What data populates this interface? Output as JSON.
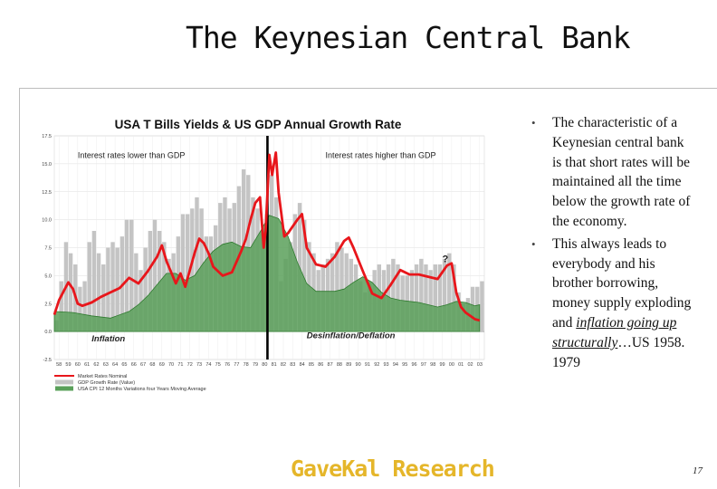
{
  "slide": {
    "title": "The Keynesian Central Bank",
    "bullets": [
      {
        "text": "The characteristic of a Keynesian central bank is that short rates will be maintained all the time below the growth rate of the economy."
      },
      {
        "text_before": "This always leads to everybody and his brother borrowing, money supply exploding and ",
        "text_emph": "inflation going up structurally",
        "text_after": "…US 1958. 1979"
      }
    ],
    "brand": "GaveKal Research",
    "page_number": "17",
    "colors": {
      "brand": "#e5b62a",
      "market_rate": "#e8161b",
      "gdp_bars": "#c4c4c4",
      "cpi_area": "#5aa05a",
      "cpi_edge": "#2e7a2e"
    }
  },
  "chart_data": {
    "type": "area",
    "title": "USA T Bills Yields & US GDP Annual Growth Rate",
    "y_tick_labels": [
      "17.5",
      "15.0",
      "12.5",
      "10.0",
      "7.5",
      "5.0",
      "2.5",
      "0.0",
      "-2.5"
    ],
    "ylim": [
      -2.5,
      17.5
    ],
    "x_tick_labels": [
      "58",
      "59",
      "60",
      "61",
      "62",
      "63",
      "64",
      "65",
      "66",
      "67",
      "68",
      "69",
      "70",
      "71",
      "72",
      "73",
      "74",
      "75",
      "76",
      "77",
      "78",
      "79",
      "80",
      "81",
      "82",
      "83",
      "84",
      "85",
      "86",
      "87",
      "88",
      "89",
      "90",
      "91",
      "92",
      "93",
      "94",
      "95",
      "96",
      "97",
      "98",
      "99",
      "00",
      "01",
      "02",
      "03"
    ],
    "xlim": [
      1958,
      2004
    ],
    "grid": true,
    "vertical_line_x": 1980.8,
    "annotations": [
      {
        "text": "Interest rates lower than GDP",
        "x": 1960.5,
        "y": 15.5
      },
      {
        "text": "Interest rates higher than GDP",
        "x": 1987,
        "y": 15.5
      },
      {
        "text": "?",
        "x": 1999.5,
        "y": 6.2
      },
      {
        "text": "Inflation",
        "x": 1962,
        "y": -0.9
      },
      {
        "text": "Desinflation/Deflation",
        "x": 1985,
        "y": -0.6
      }
    ],
    "legend": [
      "Market Rates Nominal",
      "GDP Growth Rate (Value)",
      "USA CPI 12 Months Variations four Years Moving Average"
    ],
    "legend_position": "bottom-left",
    "series": [
      {
        "name": "Market Rates Nominal",
        "style": "line",
        "x": [
          1958,
          1958.5,
          1959,
          1959.5,
          1960,
          1960.5,
          1961,
          1962,
          1963,
          1964,
          1965,
          1966,
          1967,
          1968,
          1969,
          1969.5,
          1970,
          1971,
          1971.5,
          1972,
          1973,
          1973.5,
          1974,
          1974.5,
          1975,
          1976,
          1977,
          1978,
          1978.5,
          1979,
          1979.5,
          1980,
          1980.4,
          1980.6,
          1981,
          1981.3,
          1981.7,
          1982,
          1982.6,
          1983,
          1984,
          1984.5,
          1985,
          1986,
          1987,
          1988,
          1989,
          1989.5,
          1990,
          1991,
          1992,
          1993,
          1994,
          1995,
          1996,
          1997,
          1998,
          1999,
          2000,
          2000.5,
          2001,
          2001.5,
          2002,
          2003,
          2003.5
        ],
        "y": [
          1.5,
          2.8,
          3.6,
          4.4,
          3.8,
          2.5,
          2.3,
          2.6,
          3.1,
          3.5,
          3.9,
          4.8,
          4.3,
          5.4,
          6.7,
          7.7,
          6.3,
          4.3,
          5.2,
          4.0,
          7.0,
          8.3,
          7.9,
          7.0,
          5.8,
          5.0,
          5.3,
          7.2,
          8.3,
          10.0,
          11.5,
          12.0,
          7.5,
          9.0,
          15.8,
          14.0,
          16.0,
          12.4,
          8.5,
          8.8,
          10.0,
          10.5,
          7.5,
          6.0,
          5.8,
          6.7,
          8.1,
          8.4,
          7.5,
          5.4,
          3.4,
          3.0,
          4.2,
          5.5,
          5.1,
          5.1,
          4.9,
          4.7,
          5.9,
          6.1,
          3.5,
          2.2,
          1.7,
          1.1,
          1.0
        ]
      },
      {
        "name": "GDP Growth Rate (Value)",
        "style": "bars",
        "x": [
          1958,
          1958.5,
          1959,
          1959.5,
          1960,
          1960.5,
          1961,
          1961.5,
          1962,
          1962.5,
          1963,
          1963.5,
          1964,
          1964.5,
          1965,
          1965.5,
          1966,
          1966.5,
          1967,
          1967.5,
          1968,
          1968.5,
          1969,
          1969.5,
          1970,
          1970.5,
          1971,
          1971.5,
          1972,
          1972.5,
          1973,
          1973.5,
          1974,
          1974.5,
          1975,
          1975.5,
          1976,
          1976.5,
          1977,
          1977.5,
          1978,
          1978.5,
          1979,
          1979.5,
          1980,
          1980.5,
          1981,
          1981.5,
          1982,
          1982.5,
          1983,
          1983.5,
          1984,
          1984.5,
          1985,
          1985.5,
          1986,
          1986.5,
          1987,
          1987.5,
          1988,
          1988.5,
          1989,
          1989.5,
          1990,
          1990.5,
          1991,
          1991.5,
          1992,
          1992.5,
          1993,
          1993.5,
          1994,
          1994.5,
          1995,
          1995.5,
          1996,
          1996.5,
          1997,
          1997.5,
          1998,
          1998.5,
          1999,
          1999.5,
          2000,
          2000.5,
          2001,
          2001.5,
          2002,
          2002.5,
          2003,
          2003.5
        ],
        "y": [
          1.0,
          4.5,
          8.0,
          7.0,
          6.0,
          4.0,
          4.5,
          8.0,
          9.0,
          7.0,
          6.0,
          7.5,
          8.0,
          7.5,
          8.5,
          10.0,
          10.0,
          7.0,
          5.5,
          7.5,
          9.0,
          10.0,
          9.0,
          8.0,
          6.5,
          7.0,
          8.5,
          10.5,
          10.5,
          11.0,
          12.0,
          11.0,
          8.5,
          8.5,
          9.5,
          11.5,
          12.0,
          11.0,
          11.5,
          13.0,
          14.5,
          14.0,
          12.0,
          11.0,
          9.0,
          10.5,
          14.0,
          12.0,
          4.5,
          6.5,
          8.0,
          10.5,
          11.5,
          10.0,
          8.0,
          7.0,
          5.5,
          6.0,
          6.5,
          7.0,
          8.0,
          7.5,
          7.0,
          6.5,
          6.0,
          4.5,
          3.5,
          4.5,
          5.5,
          6.0,
          5.5,
          6.0,
          6.5,
          6.0,
          5.0,
          5.0,
          5.5,
          6.0,
          6.5,
          6.0,
          5.5,
          6.0,
          6.0,
          6.5,
          7.0,
          6.0,
          3.5,
          2.5,
          3.0,
          4.0,
          4.0,
          4.5
        ]
      },
      {
        "name": "USA CPI 12 Months Variations four Years Moving Average",
        "style": "area",
        "x": [
          1958,
          1960,
          1962,
          1964,
          1966,
          1967,
          1968,
          1969,
          1970,
          1971,
          1972,
          1973,
          1974,
          1975,
          1976,
          1977,
          1978,
          1979,
          1980,
          1981,
          1982,
          1983,
          1984,
          1985,
          1986,
          1987,
          1988,
          1989,
          1990,
          1991,
          1992,
          1993,
          1994,
          1995,
          1996,
          1997,
          1998,
          1999,
          2000,
          2001,
          2002,
          2003,
          2003.5
        ],
        "y": [
          1.8,
          1.7,
          1.4,
          1.2,
          1.8,
          2.4,
          3.2,
          4.2,
          5.2,
          5.2,
          4.6,
          5.0,
          6.2,
          7.2,
          7.8,
          8.0,
          7.6,
          7.5,
          8.9,
          10.4,
          10.1,
          8.5,
          6.2,
          4.3,
          3.6,
          3.6,
          3.6,
          3.8,
          4.4,
          4.9,
          4.4,
          3.5,
          3.0,
          2.8,
          2.7,
          2.6,
          2.4,
          2.2,
          2.4,
          2.7,
          2.6,
          2.3,
          2.4
        ]
      }
    ]
  }
}
